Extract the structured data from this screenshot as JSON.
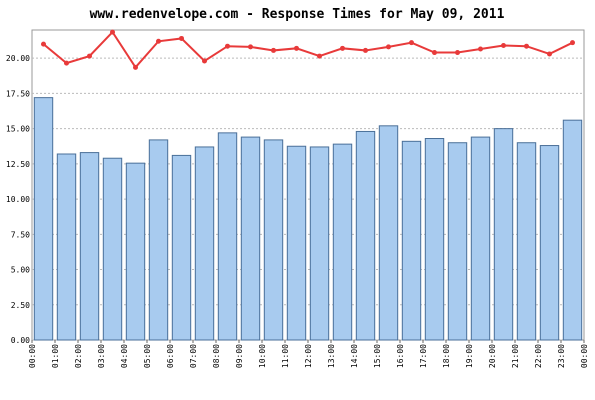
{
  "chart_data": {
    "type": "bar_line",
    "title": "www.redenvelope.com - Response Times for May 09, 2011",
    "xtick_labels": [
      "00:00",
      "01:00",
      "02:00",
      "03:00",
      "04:00",
      "05:00",
      "06:00",
      "07:00",
      "08:00",
      "09:00",
      "10:00",
      "11:00",
      "12:00",
      "13:00",
      "14:00",
      "15:00",
      "16:00",
      "17:00",
      "18:00",
      "19:00",
      "20:00",
      "21:00",
      "22:00",
      "23:00",
      "00:00"
    ],
    "series": [
      {
        "type": "bar",
        "color": "#a8cbef",
        "values": [
          17.2,
          13.2,
          13.3,
          12.9,
          12.55,
          14.2,
          13.1,
          13.7,
          14.7,
          14.4,
          14.2,
          13.75,
          13.7,
          13.9,
          14.8,
          15.2,
          14.1,
          14.3,
          14.0,
          14.4,
          15.0,
          14.0,
          13.8,
          15.6
        ]
      },
      {
        "type": "line",
        "color": "#e83a3a",
        "values": [
          21.0,
          19.65,
          20.15,
          21.85,
          19.35,
          21.2,
          21.4,
          19.8,
          20.85,
          20.8,
          20.55,
          20.7,
          20.15,
          20.7,
          20.55,
          20.8,
          21.1,
          20.4,
          20.4,
          20.65,
          20.9,
          20.85,
          20.3,
          21.1
        ]
      }
    ],
    "ylim": [
      0,
      22
    ],
    "yticks": [
      {
        "value": 0,
        "label": "0.00"
      },
      {
        "value": 2.5,
        "label": "2.50"
      },
      {
        "value": 5,
        "label": "5.00"
      },
      {
        "value": 7.5,
        "label": "7.50"
      },
      {
        "value": 10,
        "label": "10.00"
      },
      {
        "value": 12.5,
        "label": "12.50"
      },
      {
        "value": 15,
        "label": "15.00"
      },
      {
        "value": 17.5,
        "label": "17.50"
      },
      {
        "value": 20,
        "label": "20.00"
      }
    ],
    "grid": true
  }
}
